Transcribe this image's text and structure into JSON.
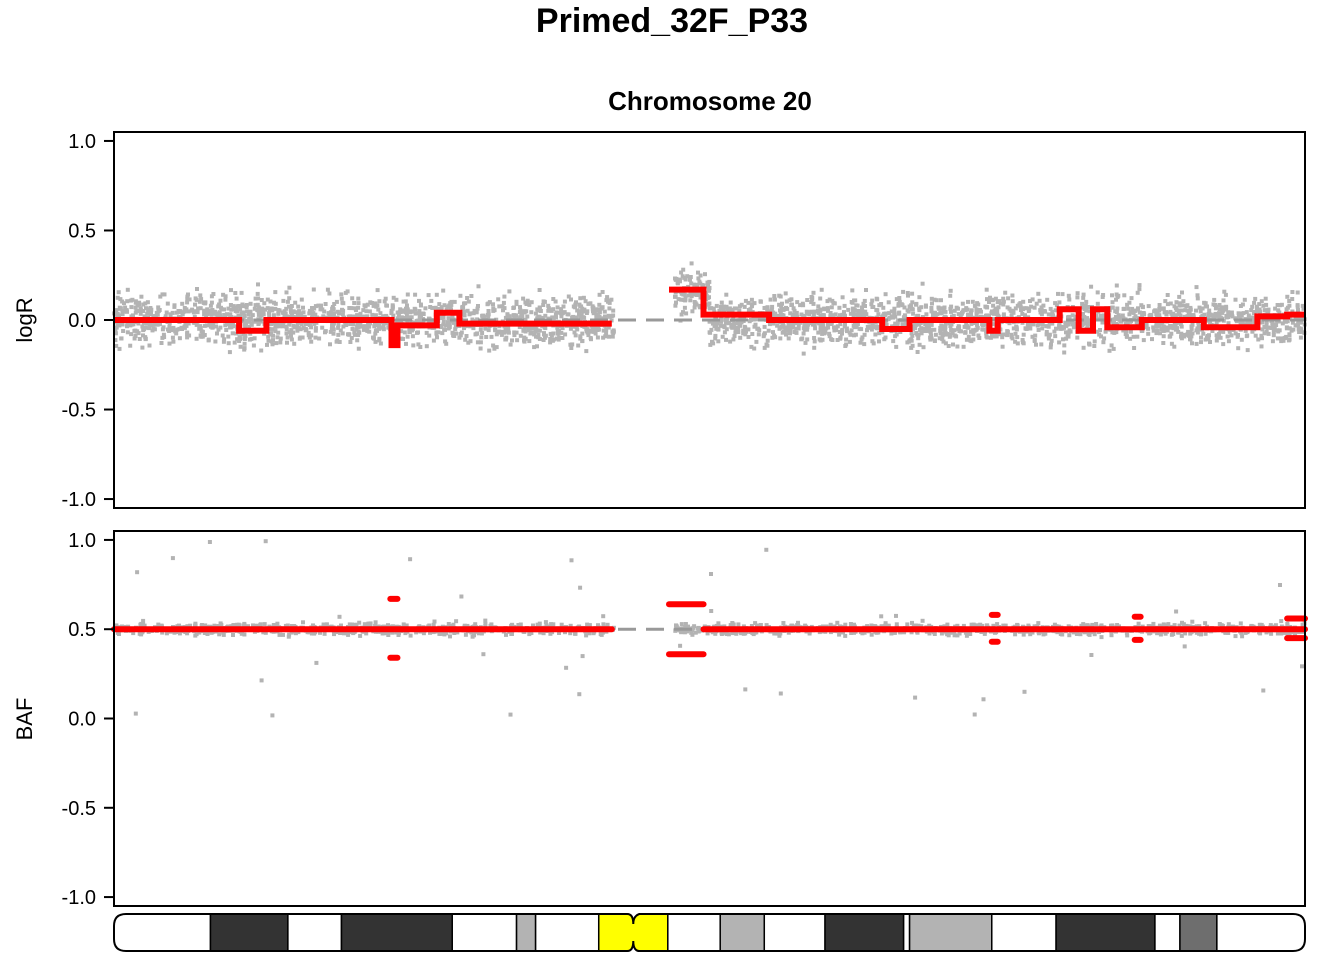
{
  "chart_data": {
    "type": "scatter",
    "title": "Primed_32F_P33",
    "subtitle": "Chromosome 20",
    "panels": [
      {
        "name": "logR",
        "ylabel": "logR",
        "ylim": [
          -1.05,
          1.05
        ],
        "yticks": [
          -1.0,
          -0.5,
          0.0,
          0.5,
          1.0
        ],
        "tick_labels": [
          "-1.0",
          "-0.5",
          "0.0",
          "0.5",
          "1.0"
        ],
        "point_color": "#b3b3b3",
        "reference_line": 0.0,
        "scatter_bands": [
          {
            "x": [
              0.0,
              0.42
            ],
            "center": 0.0,
            "spread": 0.3
          },
          {
            "x": [
              0.47,
              0.5
            ],
            "center": 0.15,
            "spread": 0.26
          },
          {
            "x": [
              0.5,
              1.0
            ],
            "center": 0.0,
            "spread": 0.3
          }
        ],
        "segments": [
          {
            "x": [
              0.0,
              0.105
            ],
            "y": 0.0
          },
          {
            "x": [
              0.105,
              0.128
            ],
            "y": -0.06
          },
          {
            "x": [
              0.128,
              0.233
            ],
            "y": 0.0
          },
          {
            "x": [
              0.233,
              0.238
            ],
            "y": -0.14
          },
          {
            "x": [
              0.238,
              0.271
            ],
            "y": -0.03
          },
          {
            "x": [
              0.271,
              0.29
            ],
            "y": 0.04
          },
          {
            "x": [
              0.29,
              0.418
            ],
            "y": -0.02
          },
          {
            "x": [
              0.466,
              0.495
            ],
            "y": 0.17
          },
          {
            "x": [
              0.495,
              0.55
            ],
            "y": 0.03
          },
          {
            "x": [
              0.55,
              0.645
            ],
            "y": 0.0
          },
          {
            "x": [
              0.645,
              0.668
            ],
            "y": -0.05
          },
          {
            "x": [
              0.668,
              0.735
            ],
            "y": 0.0
          },
          {
            "x": [
              0.735,
              0.742
            ],
            "y": -0.06
          },
          {
            "x": [
              0.742,
              0.794
            ],
            "y": 0.0
          },
          {
            "x": [
              0.794,
              0.81
            ],
            "y": 0.06
          },
          {
            "x": [
              0.81,
              0.822
            ],
            "y": -0.06
          },
          {
            "x": [
              0.822,
              0.834
            ],
            "y": 0.06
          },
          {
            "x": [
              0.834,
              0.863
            ],
            "y": -0.04
          },
          {
            "x": [
              0.863,
              0.915
            ],
            "y": 0.0
          },
          {
            "x": [
              0.915,
              0.96
            ],
            "y": -0.04
          },
          {
            "x": [
              0.96,
              0.985
            ],
            "y": 0.02
          },
          {
            "x": [
              0.985,
              1.0
            ],
            "y": 0.03
          }
        ]
      },
      {
        "name": "BAF",
        "ylabel": "BAF",
        "ylim": [
          -1.05,
          1.05
        ],
        "yticks": [
          -1.0,
          -0.5,
          0.0,
          0.5,
          1.0
        ],
        "tick_labels": [
          "-1.0",
          "-0.5",
          "0.0",
          "0.5",
          "1.0"
        ],
        "point_color": "#b3b3b3",
        "reference_line": 0.5,
        "scatter_bands": [
          {
            "x": [
              0.0,
              0.42
            ],
            "center": 0.5,
            "spread": 0.07
          },
          {
            "x": [
              0.47,
              0.5
            ],
            "center": 0.5,
            "spread": 0.06
          },
          {
            "x": [
              0.5,
              1.0
            ],
            "center": 0.5,
            "spread": 0.07
          }
        ],
        "segments": [
          {
            "x": [
              0.0,
              0.418
            ],
            "y": 0.5
          },
          {
            "x": [
              0.232,
              0.238
            ],
            "y": 0.67
          },
          {
            "x": [
              0.232,
              0.238
            ],
            "y": 0.34
          },
          {
            "x": [
              0.466,
              0.495
            ],
            "y": 0.64
          },
          {
            "x": [
              0.466,
              0.495
            ],
            "y": 0.36
          },
          {
            "x": [
              0.495,
              1.0
            ],
            "y": 0.5
          },
          {
            "x": [
              0.737,
              0.742
            ],
            "y": 0.58
          },
          {
            "x": [
              0.737,
              0.742
            ],
            "y": 0.43
          },
          {
            "x": [
              0.857,
              0.862
            ],
            "y": 0.57
          },
          {
            "x": [
              0.857,
              0.862
            ],
            "y": 0.44
          },
          {
            "x": [
              0.985,
              1.0
            ],
            "y": 0.56
          },
          {
            "x": [
              0.985,
              1.0
            ],
            "y": 0.45
          }
        ]
      }
    ],
    "ideogram": {
      "bands": [
        {
          "x": [
            0.0,
            0.081
          ],
          "color": "#ffffff"
        },
        {
          "x": [
            0.081,
            0.146
          ],
          "color": "#333333"
        },
        {
          "x": [
            0.146,
            0.191
          ],
          "color": "#ffffff"
        },
        {
          "x": [
            0.191,
            0.284
          ],
          "color": "#333333"
        },
        {
          "x": [
            0.284,
            0.338
          ],
          "color": "#ffffff"
        },
        {
          "x": [
            0.338,
            0.354
          ],
          "color": "#b3b3b3"
        },
        {
          "x": [
            0.354,
            0.407
          ],
          "color": "#ffffff"
        },
        {
          "x": [
            0.407,
            0.465
          ],
          "color": "#ffff00"
        },
        {
          "x": [
            0.465,
            0.509
          ],
          "color": "#ffffff"
        },
        {
          "x": [
            0.509,
            0.546
          ],
          "color": "#b3b3b3"
        },
        {
          "x": [
            0.546,
            0.597
          ],
          "color": "#ffffff"
        },
        {
          "x": [
            0.597,
            0.663
          ],
          "color": "#333333"
        },
        {
          "x": [
            0.663,
            0.668
          ],
          "color": "#ffffff"
        },
        {
          "x": [
            0.668,
            0.737
          ],
          "color": "#b3b3b3"
        },
        {
          "x": [
            0.737,
            0.791
          ],
          "color": "#ffffff"
        },
        {
          "x": [
            0.791,
            0.874
          ],
          "color": "#333333"
        },
        {
          "x": [
            0.874,
            0.895
          ],
          "color": "#ffffff"
        },
        {
          "x": [
            0.895,
            0.926
          ],
          "color": "#6e6e6e"
        },
        {
          "x": [
            0.926,
            1.0
          ],
          "color": "#ffffff"
        }
      ],
      "centromere_x": 0.436
    },
    "colors": {
      "points": "#b3b3b3",
      "segments": "#ff0000",
      "reference": "#999999",
      "centromere": "#ffff00"
    }
  }
}
